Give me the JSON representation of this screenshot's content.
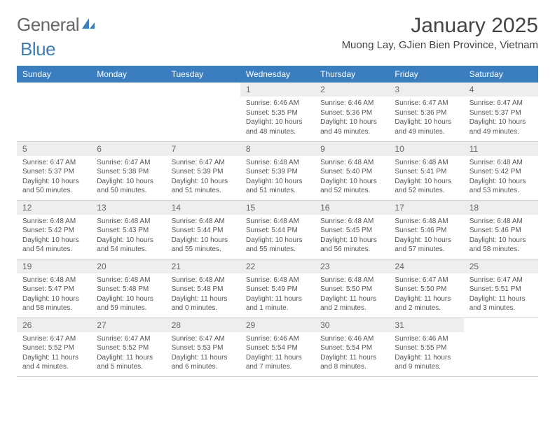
{
  "logo": {
    "text_gray": "General",
    "text_blue": "Blue"
  },
  "title": "January 2025",
  "location": "Muong Lay, GJien Bien Province, Vietnam",
  "colors": {
    "header_bg": "#3a7ebf",
    "header_text": "#ffffff",
    "daynum_bg": "#eeeeee",
    "body_text": "#555555",
    "border": "#d0d0d0"
  },
  "weekdays": [
    "Sunday",
    "Monday",
    "Tuesday",
    "Wednesday",
    "Thursday",
    "Friday",
    "Saturday"
  ],
  "weeks": [
    [
      {
        "empty": true
      },
      {
        "empty": true
      },
      {
        "empty": true
      },
      {
        "n": "1",
        "sr": "6:46 AM",
        "ss": "5:35 PM",
        "dl": "10 hours and 48 minutes."
      },
      {
        "n": "2",
        "sr": "6:46 AM",
        "ss": "5:36 PM",
        "dl": "10 hours and 49 minutes."
      },
      {
        "n": "3",
        "sr": "6:47 AM",
        "ss": "5:36 PM",
        "dl": "10 hours and 49 minutes."
      },
      {
        "n": "4",
        "sr": "6:47 AM",
        "ss": "5:37 PM",
        "dl": "10 hours and 49 minutes."
      }
    ],
    [
      {
        "n": "5",
        "sr": "6:47 AM",
        "ss": "5:37 PM",
        "dl": "10 hours and 50 minutes."
      },
      {
        "n": "6",
        "sr": "6:47 AM",
        "ss": "5:38 PM",
        "dl": "10 hours and 50 minutes."
      },
      {
        "n": "7",
        "sr": "6:47 AM",
        "ss": "5:39 PM",
        "dl": "10 hours and 51 minutes."
      },
      {
        "n": "8",
        "sr": "6:48 AM",
        "ss": "5:39 PM",
        "dl": "10 hours and 51 minutes."
      },
      {
        "n": "9",
        "sr": "6:48 AM",
        "ss": "5:40 PM",
        "dl": "10 hours and 52 minutes."
      },
      {
        "n": "10",
        "sr": "6:48 AM",
        "ss": "5:41 PM",
        "dl": "10 hours and 52 minutes."
      },
      {
        "n": "11",
        "sr": "6:48 AM",
        "ss": "5:42 PM",
        "dl": "10 hours and 53 minutes."
      }
    ],
    [
      {
        "n": "12",
        "sr": "6:48 AM",
        "ss": "5:42 PM",
        "dl": "10 hours and 54 minutes."
      },
      {
        "n": "13",
        "sr": "6:48 AM",
        "ss": "5:43 PM",
        "dl": "10 hours and 54 minutes."
      },
      {
        "n": "14",
        "sr": "6:48 AM",
        "ss": "5:44 PM",
        "dl": "10 hours and 55 minutes."
      },
      {
        "n": "15",
        "sr": "6:48 AM",
        "ss": "5:44 PM",
        "dl": "10 hours and 55 minutes."
      },
      {
        "n": "16",
        "sr": "6:48 AM",
        "ss": "5:45 PM",
        "dl": "10 hours and 56 minutes."
      },
      {
        "n": "17",
        "sr": "6:48 AM",
        "ss": "5:46 PM",
        "dl": "10 hours and 57 minutes."
      },
      {
        "n": "18",
        "sr": "6:48 AM",
        "ss": "5:46 PM",
        "dl": "10 hours and 58 minutes."
      }
    ],
    [
      {
        "n": "19",
        "sr": "6:48 AM",
        "ss": "5:47 PM",
        "dl": "10 hours and 58 minutes."
      },
      {
        "n": "20",
        "sr": "6:48 AM",
        "ss": "5:48 PM",
        "dl": "10 hours and 59 minutes."
      },
      {
        "n": "21",
        "sr": "6:48 AM",
        "ss": "5:48 PM",
        "dl": "11 hours and 0 minutes."
      },
      {
        "n": "22",
        "sr": "6:48 AM",
        "ss": "5:49 PM",
        "dl": "11 hours and 1 minute."
      },
      {
        "n": "23",
        "sr": "6:48 AM",
        "ss": "5:50 PM",
        "dl": "11 hours and 2 minutes."
      },
      {
        "n": "24",
        "sr": "6:47 AM",
        "ss": "5:50 PM",
        "dl": "11 hours and 2 minutes."
      },
      {
        "n": "25",
        "sr": "6:47 AM",
        "ss": "5:51 PM",
        "dl": "11 hours and 3 minutes."
      }
    ],
    [
      {
        "n": "26",
        "sr": "6:47 AM",
        "ss": "5:52 PM",
        "dl": "11 hours and 4 minutes."
      },
      {
        "n": "27",
        "sr": "6:47 AM",
        "ss": "5:52 PM",
        "dl": "11 hours and 5 minutes."
      },
      {
        "n": "28",
        "sr": "6:47 AM",
        "ss": "5:53 PM",
        "dl": "11 hours and 6 minutes."
      },
      {
        "n": "29",
        "sr": "6:46 AM",
        "ss": "5:54 PM",
        "dl": "11 hours and 7 minutes."
      },
      {
        "n": "30",
        "sr": "6:46 AM",
        "ss": "5:54 PM",
        "dl": "11 hours and 8 minutes."
      },
      {
        "n": "31",
        "sr": "6:46 AM",
        "ss": "5:55 PM",
        "dl": "11 hours and 9 minutes."
      },
      {
        "empty": true
      }
    ]
  ],
  "labels": {
    "sunrise": "Sunrise:",
    "sunset": "Sunset:",
    "daylight": "Daylight:"
  }
}
